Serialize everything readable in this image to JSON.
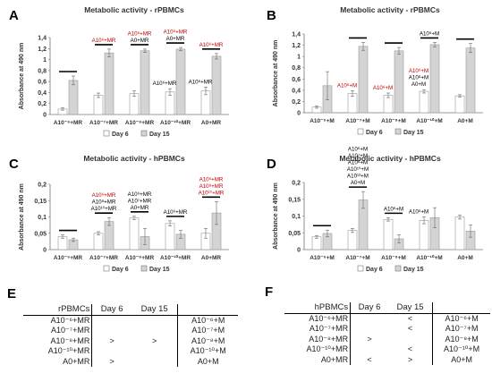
{
  "charts": [
    {
      "letter": "A",
      "type": "bar",
      "title": "Metabolic activity - rPBMCs",
      "ylabel": "Absorbance at 490 nm",
      "ylim": [
        0,
        1.4
      ],
      "yticks": [
        "0",
        "0,2",
        "0,4",
        "0,6",
        "0,8",
        "1",
        "1,2",
        "1,4"
      ],
      "ytick_values": [
        0,
        0.2,
        0.4,
        0.6,
        0.8,
        1.0,
        1.2,
        1.4
      ],
      "categories": [
        "A10⁻⁶+MR",
        "A10⁻⁷+MR",
        "A10⁻⁸+MR",
        "A10⁻¹⁰+MR",
        "A0+MR"
      ],
      "series": [
        {
          "name": "Day 6",
          "values": [
            0.1,
            0.35,
            0.38,
            0.41,
            0.43
          ],
          "errors": [
            0.02,
            0.04,
            0.05,
            0.06,
            0.07
          ]
        },
        {
          "name": "Day 15",
          "values": [
            0.62,
            1.12,
            1.16,
            1.19,
            1.06
          ],
          "errors": [
            0.08,
            0.07,
            0.03,
            0.03,
            0.05
          ]
        }
      ],
      "significance_bars": [
        0,
        1,
        2,
        3,
        4
      ],
      "annotations": [
        {
          "category": 0,
          "lines": [],
          "lines_red": []
        },
        {
          "category": 1,
          "lines": [],
          "lines_red": [
            "A10⁶+MR"
          ]
        },
        {
          "category": 2,
          "lines": [
            "A0+MR"
          ],
          "lines_red": [
            "A10⁶+MR"
          ]
        },
        {
          "category": 3,
          "lines": [
            "A0+MR"
          ],
          "lines_red": [
            "A10⁶+MR"
          ]
        },
        {
          "category": 4,
          "lines": [],
          "lines_red": [
            "A10⁶+MR"
          ]
        }
      ],
      "inline_labels": [
        {
          "category": 3,
          "text": "A10⁶+MR",
          "color": "#000"
        },
        {
          "category": 4,
          "text": "A10⁶+MR",
          "color": "#000"
        }
      ],
      "legend": [
        "Day 6",
        "Day 15"
      ]
    },
    {
      "letter": "B",
      "type": "bar",
      "title": "Metabolic activity - rPBMCs",
      "ylabel": "Absorbance at 490 nm",
      "ylim": [
        0,
        1.4
      ],
      "yticks": [
        "0",
        "0,2",
        "0,4",
        "0,6",
        "0,8",
        "1",
        "1,2",
        "1,4"
      ],
      "ytick_values": [
        0,
        0.2,
        0.4,
        0.6,
        0.8,
        1.0,
        1.2,
        1.4
      ],
      "categories": [
        "A10⁻⁶+M",
        "A10⁻⁷+M",
        "A10⁻⁸+M",
        "A10⁻¹⁰+M",
        "A0+M"
      ],
      "series": [
        {
          "name": "Day 6",
          "values": [
            0.1,
            0.34,
            0.31,
            0.38,
            0.3
          ],
          "errors": [
            0.02,
            0.05,
            0.04,
            0.03,
            0.02
          ]
        },
        {
          "name": "Day 15",
          "values": [
            0.48,
            1.18,
            1.1,
            1.21,
            1.15
          ],
          "errors": [
            0.25,
            0.07,
            0.06,
            0.04,
            0.08
          ]
        }
      ],
      "significance_bars": [
        1,
        2,
        3,
        4
      ],
      "annotations": [
        {
          "category": 3,
          "lines": [
            "A10⁶+M"
          ],
          "lines_red": []
        }
      ],
      "inline_labels": [
        {
          "category": 1,
          "text": "A10⁶+M",
          "color": "#c00000"
        },
        {
          "category": 2,
          "text": "A10⁶+M",
          "color": "#c00000"
        },
        {
          "category": 3,
          "stack": [
            {
              "text": "A10⁶+M",
              "color": "#c00000"
            },
            {
              "text": "A10⁸+M",
              "color": "#000"
            },
            {
              "text": "A0+M",
              "color": "#000"
            }
          ]
        }
      ],
      "legend": [
        "Day 6",
        "Day 15"
      ]
    },
    {
      "letter": "C",
      "type": "bar",
      "title": "Metabolic activity - hPBMCs",
      "ylabel": "Absorbance at 490 nm",
      "ylim": [
        0,
        0.2
      ],
      "yticks": [
        "0",
        "0,05",
        "0,1",
        "0,15",
        "0,2"
      ],
      "ytick_values": [
        0,
        0.05,
        0.1,
        0.15,
        0.2
      ],
      "categories": [
        "A10⁻⁶+MR",
        "A10⁻⁷+MR",
        "A10⁻⁸+MR",
        "A10⁻¹⁰+MR",
        "A0+MR"
      ],
      "series": [
        {
          "name": "Day 6",
          "values": [
            0.04,
            0.05,
            0.097,
            0.08,
            0.05
          ],
          "errors": [
            0.005,
            0.005,
            0.005,
            0.008,
            0.015
          ]
        },
        {
          "name": "Day 15",
          "values": [
            0.03,
            0.086,
            0.04,
            0.047,
            0.112
          ],
          "errors": [
            0.005,
            0.012,
            0.025,
            0.012,
            0.035
          ]
        }
      ],
      "significance_bars": [
        0,
        1,
        2,
        3,
        4
      ],
      "annotations": [
        {
          "category": 1,
          "lines_red": [
            "A10⁶+MR"
          ],
          "lines": [
            "A10⁸+MR",
            "A10¹⁰+MR"
          ]
        },
        {
          "category": 2,
          "lines": [
            "A10⁶+MR",
            "A10⁷+MR",
            "A0+MR"
          ],
          "lines_red": []
        },
        {
          "category": 3,
          "lines": [
            "A10⁶+MR"
          ],
          "lines_red": []
        },
        {
          "category": 4,
          "lines": [],
          "lines_red": [
            "A10⁶+MR",
            "A10⁸+MR",
            "A10¹⁰+MR"
          ]
        }
      ],
      "inline_labels": [],
      "legend": [
        "Day 6",
        "Day 15"
      ]
    },
    {
      "letter": "D",
      "type": "bar",
      "title": "Metabolic activity - hPBMCs",
      "ylabel": "Absorbance at 490 nm",
      "ylim": [
        0,
        0.2
      ],
      "yticks": [
        "0",
        "0,05",
        "0,1",
        "0,15",
        "0,2"
      ],
      "ytick_values": [
        0,
        0.05,
        0.1,
        0.15,
        0.2
      ],
      "categories": [
        "A10⁻⁶+M",
        "A10⁻⁷+M",
        "A10⁻⁸+M",
        "A10⁻¹⁰+M",
        "A0+M"
      ],
      "series": [
        {
          "name": "Day 6",
          "values": [
            0.038,
            0.057,
            0.09,
            0.087,
            0.097
          ],
          "errors": [
            0.004,
            0.006,
            0.005,
            0.01,
            0.006
          ]
        },
        {
          "name": "Day 15",
          "values": [
            0.048,
            0.148,
            0.032,
            0.095,
            0.055
          ],
          "errors": [
            0.01,
            0.025,
            0.012,
            0.03,
            0.018
          ]
        }
      ],
      "significance_bars": [
        0,
        1,
        2
      ],
      "annotations": [
        {
          "category": 1,
          "lines": [
            "A10⁶+M",
            "A10⁷+M",
            "A10⁸+M",
            "A10¹⁰+M",
            "A10¹²+M",
            "A0+M"
          ],
          "lines_red": []
        },
        {
          "category": 2,
          "lines": [
            "A10⁶+M"
          ],
          "lines_red": []
        },
        {
          "category": 3,
          "lines": [
            "A10⁶+M",
            "A10⁷+M"
          ],
          "lines_red": []
        },
        {
          "category": 4,
          "lines": [
            "A10⁶+M",
            "A10⁸+M"
          ],
          "lines_red": []
        }
      ],
      "inline_labels": [
        {
          "category": 3,
          "text": "A10⁶+M",
          "color": "#000"
        }
      ],
      "legend": [
        "Day 6",
        "Day 15"
      ]
    }
  ],
  "tables": [
    {
      "letter": "E",
      "header": [
        "rPBMCs",
        "Day 6",
        "Day 15",
        ""
      ],
      "rows": [
        [
          "A10⁻⁶+MR",
          "",
          "",
          "A10⁻⁶+M"
        ],
        [
          "A10⁻⁷+MR",
          "",
          "",
          "A10⁻⁷+M"
        ],
        [
          "A10⁻⁸+MR",
          ">",
          ">",
          "A10⁻⁸+M"
        ],
        [
          "A10⁻¹⁰+MR",
          "",
          "",
          "A10⁻¹⁰+M"
        ],
        [
          "A0+MR",
          ">",
          "",
          "A0+M"
        ]
      ]
    },
    {
      "letter": "F",
      "header": [
        "hPBMCs",
        "Day 6",
        "Day 15",
        ""
      ],
      "rows": [
        [
          "A10⁻⁶+MR",
          "",
          "<",
          "A10⁻⁶+M"
        ],
        [
          "A10⁻⁷+MR",
          "",
          "<",
          "A10⁻⁷+M"
        ],
        [
          "A10⁻⁸+MR",
          ">",
          "",
          "A10⁻⁸+M"
        ],
        [
          "A10⁻¹⁰+MR",
          "",
          "<",
          "A10⁻¹⁰+M"
        ],
        [
          "A0+MR",
          "<",
          ">",
          "A0+M"
        ]
      ]
    }
  ],
  "colors": {
    "day6": "#ffffff",
    "day15": "#d4d4d4",
    "red_label": "#c00000",
    "axis": "#555555",
    "grid": "#dddddd"
  }
}
